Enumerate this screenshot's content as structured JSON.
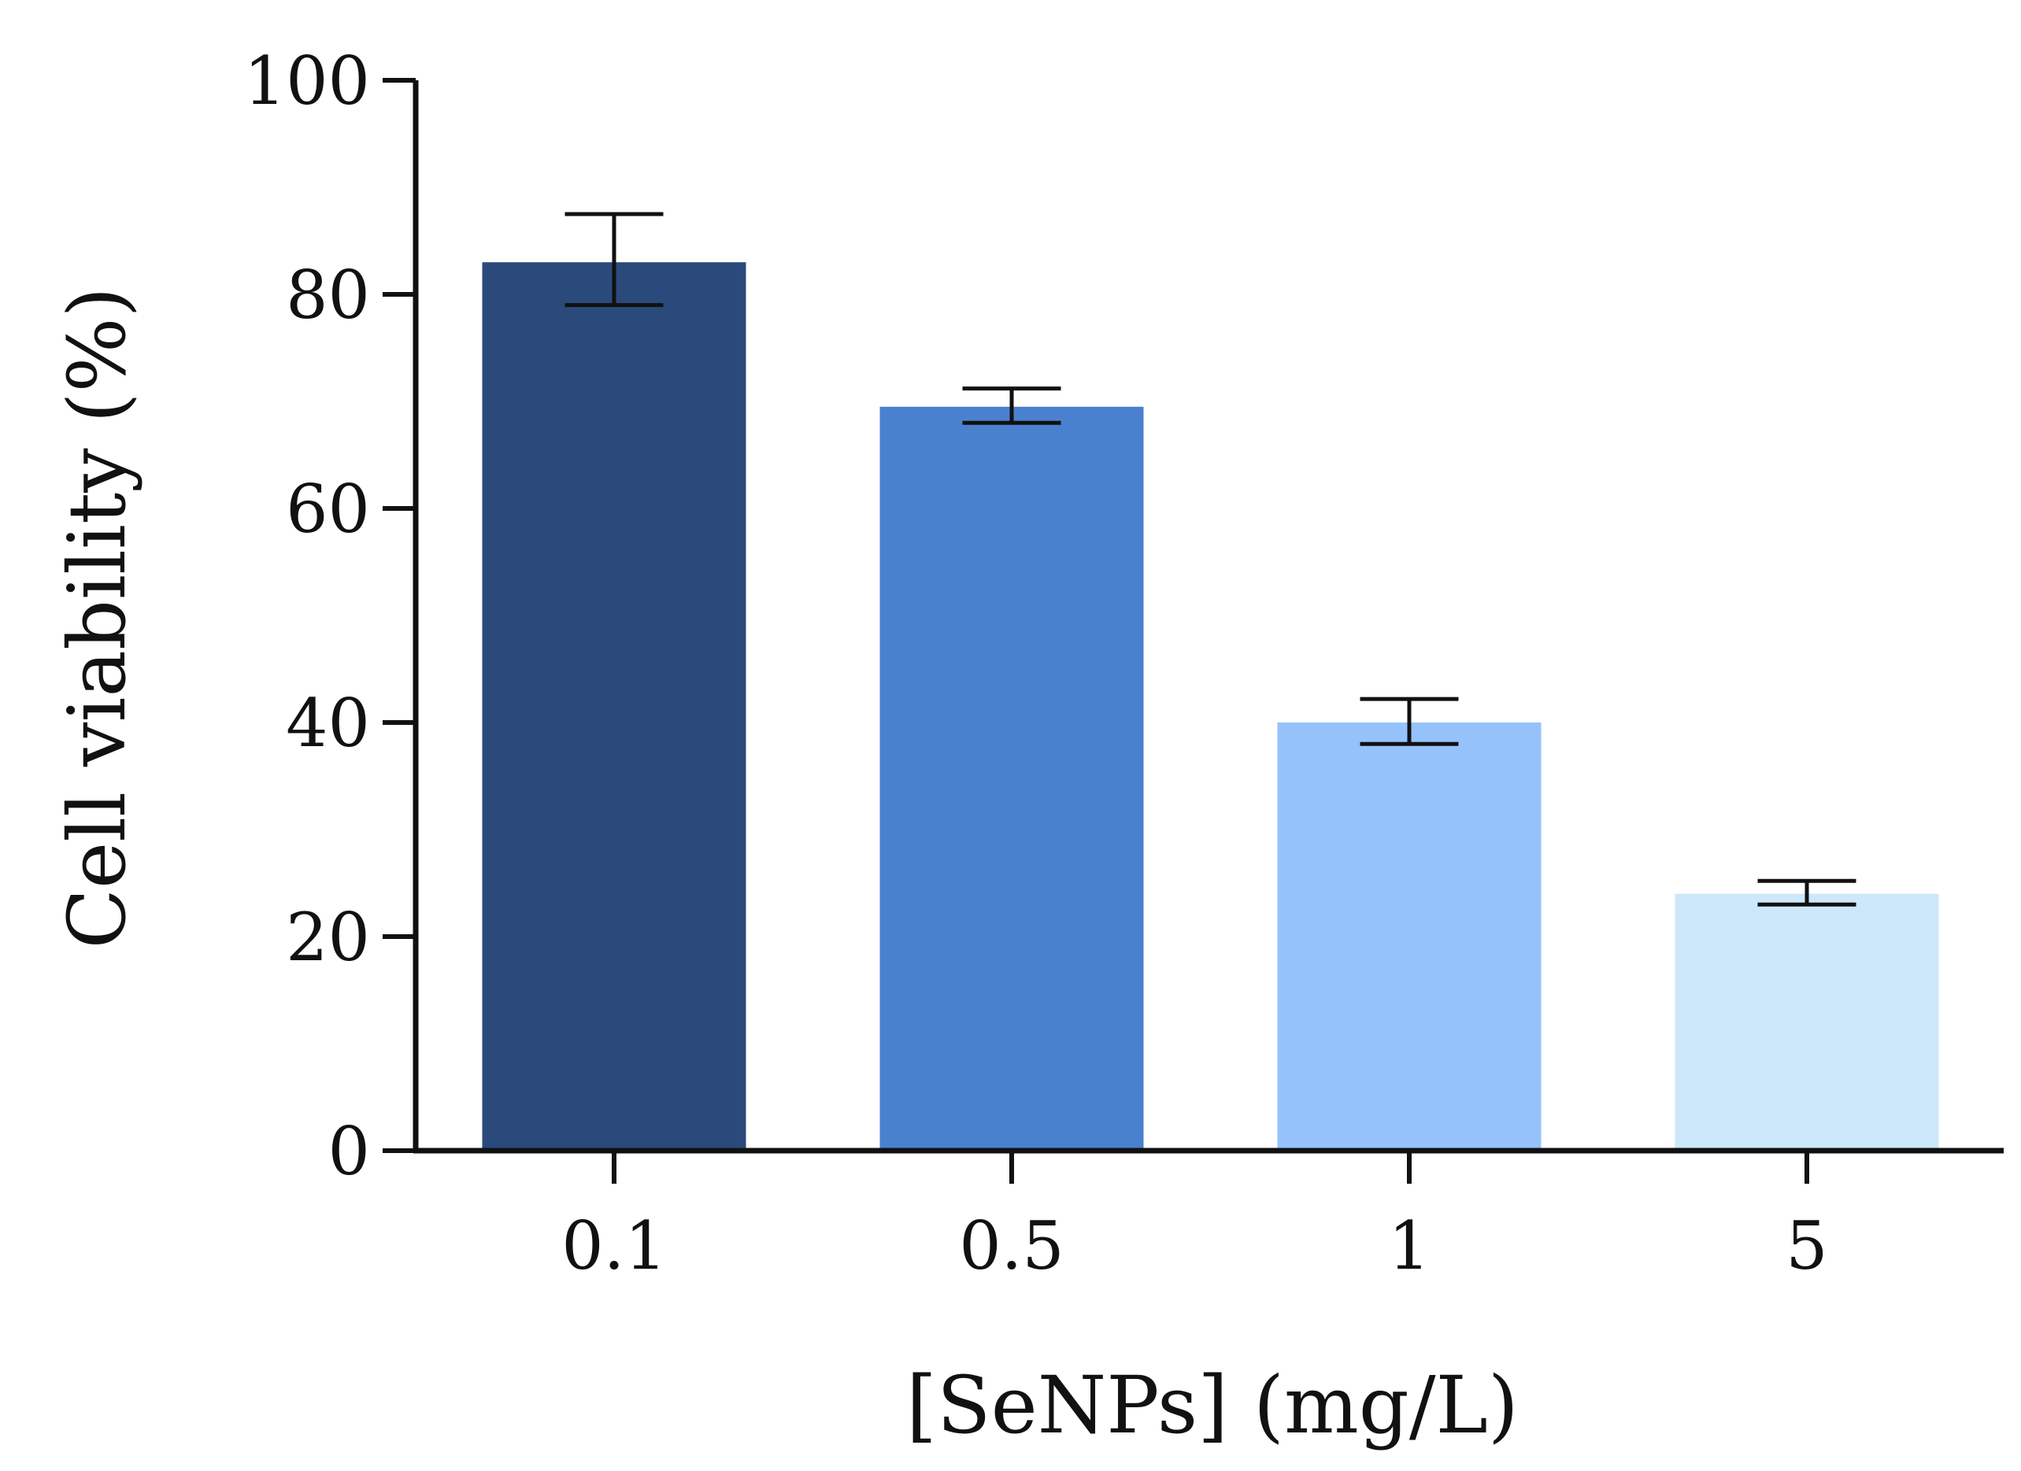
{
  "chart_data": {
    "type": "bar",
    "title": "",
    "xlabel": "[SeNPs] (mg/L)",
    "ylabel": "Cell viability (%)",
    "categories": [
      "0.1",
      "0.5",
      "1",
      "5"
    ],
    "values": [
      83,
      69.5,
      40,
      24
    ],
    "error_bars": {
      "lower": [
        79,
        68,
        38,
        23
      ],
      "upper": [
        87.5,
        71.2,
        42.2,
        25.2
      ]
    },
    "bar_colors": [
      "#2b4a7c",
      "#4a81cf",
      "#96c2fb",
      "#cde7fb"
    ],
    "ylim": [
      0,
      100
    ],
    "yticks": [
      0,
      20,
      40,
      60,
      80,
      100
    ],
    "grid": false,
    "legend": "none"
  }
}
